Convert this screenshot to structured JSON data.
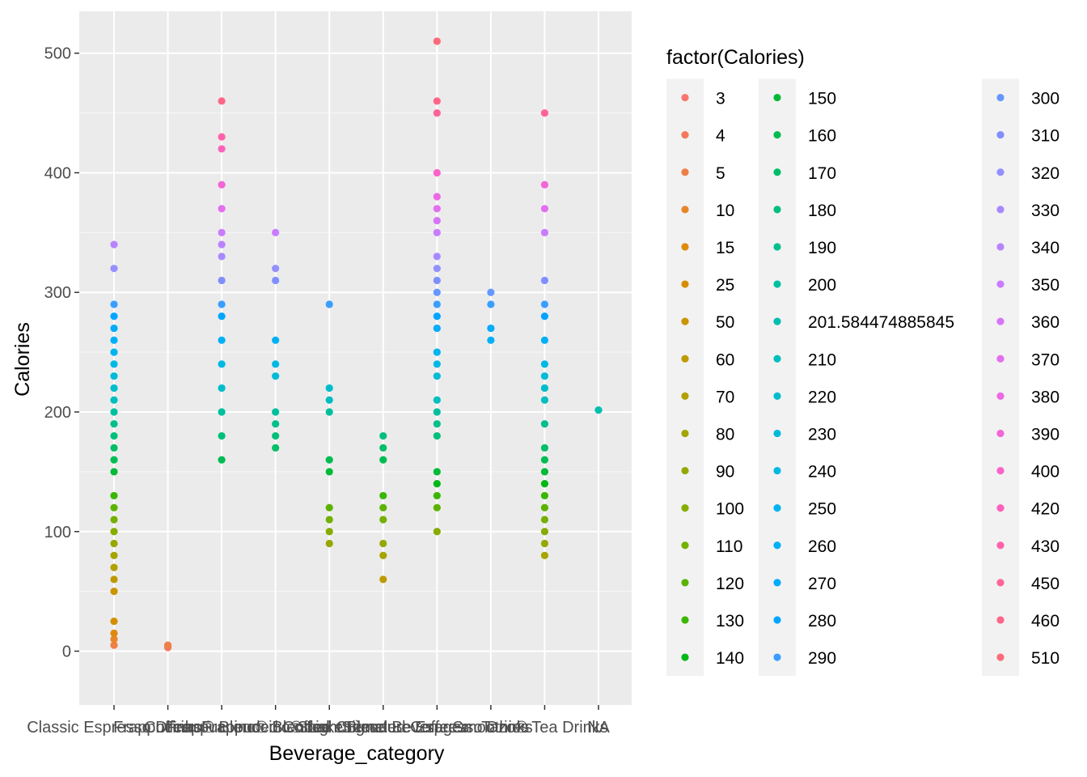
{
  "chart_data": {
    "type": "scatter",
    "xlabel": "Beverage_category",
    "ylabel": "Calories",
    "ylim": [
      -45,
      535
    ],
    "yticks": [
      0,
      100,
      200,
      300,
      400,
      500
    ],
    "grid": true,
    "legend_position": "right",
    "legend_title": "factor(Calories)",
    "categories": [
      "Classic Espresso Drinks",
      "Coffee",
      "Frappuccino® Blended Coffee",
      "Frappuccino® Blended Crème",
      "Frappuccino® Light Blended Coffee",
      "Shaken Iced Beverages",
      "Signature Espresso Drinks",
      "Smoothies",
      "Tazo® Tea Drinks",
      "NA"
    ],
    "tick_labels": [
      "Classic Espresso Drinks",
      "Coffee",
      "Frappuccino® Blended Coffee",
      "Frappuccino® Blended Crème",
      "Frappuccino® Light Blended Coffee",
      "Shaken Iced Beverages",
      "Signature Espresso Drinks",
      "Smoothies",
      "Tazo® Tea Drinks",
      "NA"
    ],
    "points": [
      {
        "category": "Classic Espresso Drinks",
        "calories": [
          5,
          10,
          15,
          25,
          50,
          60,
          70,
          80,
          90,
          100,
          110,
          120,
          130,
          150,
          160,
          170,
          180,
          190,
          200,
          210,
          220,
          230,
          240,
          250,
          260,
          270,
          280,
          290,
          320,
          340
        ]
      },
      {
        "category": "Coffee",
        "calories": [
          3,
          4,
          5
        ]
      },
      {
        "category": "Frappuccino® Blended Coffee",
        "calories": [
          160,
          180,
          200,
          220,
          240,
          260,
          280,
          290,
          310,
          330,
          340,
          350,
          370,
          390,
          420,
          430,
          460
        ]
      },
      {
        "category": "Frappuccino® Blended Crème",
        "calories": [
          170,
          180,
          190,
          200,
          230,
          240,
          260,
          310,
          320,
          350
        ]
      },
      {
        "category": "Frappuccino® Light Blended Coffee",
        "calories": [
          90,
          100,
          110,
          120,
          150,
          160,
          200,
          210,
          220,
          290
        ]
      },
      {
        "category": "Shaken Iced Beverages",
        "calories": [
          60,
          80,
          90,
          110,
          120,
          130,
          160,
          170,
          180
        ]
      },
      {
        "category": "Signature Espresso Drinks",
        "calories": [
          100,
          120,
          130,
          140,
          150,
          180,
          190,
          200,
          210,
          230,
          240,
          250,
          270,
          280,
          290,
          300,
          310,
          320,
          330,
          350,
          360,
          370,
          380,
          400,
          450,
          460,
          510
        ]
      },
      {
        "category": "Smoothies",
        "calories": [
          260,
          270,
          290,
          300
        ]
      },
      {
        "category": "Tazo® Tea Drinks",
        "calories": [
          80,
          90,
          100,
          110,
          120,
          130,
          140,
          150,
          160,
          170,
          190,
          210,
          220,
          230,
          240,
          260,
          280,
          290,
          310,
          350,
          370,
          390,
          450
        ]
      },
      {
        "category": "NA",
        "calories": [
          201.584474885845
        ]
      }
    ],
    "legend_entries": [
      {
        "label": "3",
        "color": "#F8766D"
      },
      {
        "label": "4",
        "color": "#F47A5B"
      },
      {
        "label": "5",
        "color": "#EE7F45"
      },
      {
        "label": "10",
        "color": "#E6852B"
      },
      {
        "label": "15",
        "color": "#DE8A0D"
      },
      {
        "label": "25",
        "color": "#D48F00"
      },
      {
        "label": "50",
        "color": "#CA9500"
      },
      {
        "label": "60",
        "color": "#BE9A00"
      },
      {
        "label": "70",
        "color": "#B29F00"
      },
      {
        "label": "80",
        "color": "#A5A400"
      },
      {
        "label": "90",
        "color": "#96A800"
      },
      {
        "label": "100",
        "color": "#86AC00"
      },
      {
        "label": "110",
        "color": "#73B000"
      },
      {
        "label": "120",
        "color": "#5BB300"
      },
      {
        "label": "130",
        "color": "#39B600"
      },
      {
        "label": "140",
        "color": "#00B815"
      },
      {
        "label": "150",
        "color": "#00BA38"
      },
      {
        "label": "160",
        "color": "#00BC52"
      },
      {
        "label": "170",
        "color": "#00BD68"
      },
      {
        "label": "180",
        "color": "#00BE7B"
      },
      {
        "label": "190",
        "color": "#00BF8D"
      },
      {
        "label": "200",
        "color": "#00BF9E"
      },
      {
        "label": "201.584474885845",
        "color": "#00BFAE"
      },
      {
        "label": "210",
        "color": "#00BEBD"
      },
      {
        "label": "220",
        "color": "#00BDCB"
      },
      {
        "label": "230",
        "color": "#00BBD8"
      },
      {
        "label": "240",
        "color": "#00B8E4"
      },
      {
        "label": "250",
        "color": "#00B4EF"
      },
      {
        "label": "260",
        "color": "#00B0F6"
      },
      {
        "label": "270",
        "color": "#00ABFB"
      },
      {
        "label": "280",
        "color": "#00A5FF"
      },
      {
        "label": "290",
        "color": "#3A9EFF"
      },
      {
        "label": "300",
        "color": "#6597FF"
      },
      {
        "label": "310",
        "color": "#808FFF"
      },
      {
        "label": "320",
        "color": "#9590FF"
      },
      {
        "label": "330",
        "color": "#A789FF"
      },
      {
        "label": "340",
        "color": "#B983FF"
      },
      {
        "label": "350",
        "color": "#C97CFF"
      },
      {
        "label": "360",
        "color": "#D775F9"
      },
      {
        "label": "370",
        "color": "#E36FF0"
      },
      {
        "label": "380",
        "color": "#EC69E5"
      },
      {
        "label": "390",
        "color": "#F365D8"
      },
      {
        "label": "400",
        "color": "#F963CA"
      },
      {
        "label": "420",
        "color": "#FC62BB"
      },
      {
        "label": "430",
        "color": "#FF62AB"
      },
      {
        "label": "450",
        "color": "#FF639A"
      },
      {
        "label": "460",
        "color": "#FF6689"
      },
      {
        "label": "510",
        "color": "#FD6B79"
      }
    ],
    "legend_columns": 3
  },
  "colors": {
    "panel_background": "#EBEBEB",
    "major_grid": "#FFFFFF",
    "legend_key_background": "#F2F2F2"
  }
}
